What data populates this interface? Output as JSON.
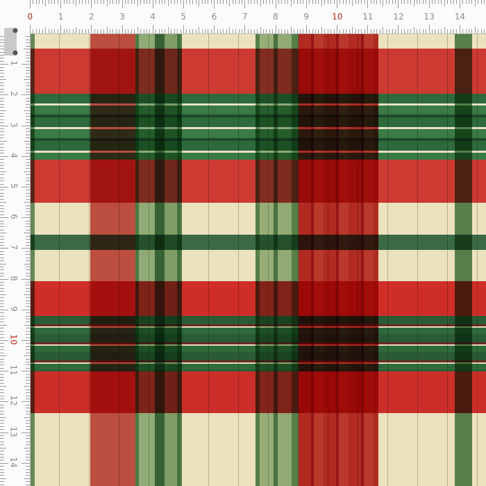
{
  "ruler": {
    "unit": "cm",
    "top_labels": [
      "0",
      "1",
      "2",
      "3",
      "4",
      "5",
      "6",
      "7",
      "8",
      "9",
      "10",
      "11",
      "12",
      "13",
      "14"
    ],
    "left_labels": [
      "1",
      "2",
      "3",
      "4",
      "5",
      "6",
      "7",
      "8",
      "9",
      "10",
      "11",
      "12",
      "13",
      "14"
    ],
    "highlight_labels": [
      "0",
      "10"
    ],
    "highlight_color": "#b8281e"
  },
  "fabric": {
    "pattern": "plaid tartan",
    "colors": {
      "cream": "#ece2bf",
      "red": "#c8322c",
      "dark_red": "#9c1018",
      "green": "#2f6a3c",
      "dark_green": "#1f4a2c",
      "light_green": "#7fa77f"
    }
  }
}
